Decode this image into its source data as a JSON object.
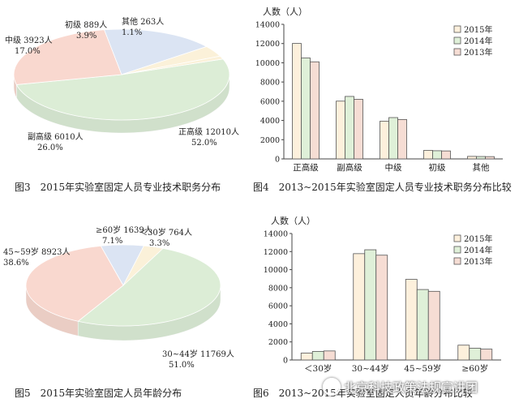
{
  "captions": {
    "fig3": "图3　2015年实验室固定人员专业技术职务分布",
    "fig4": "图4　2013~2015年实验室固定人员专业技术职务分布比较",
    "fig5": "图5　2015年实验室固定人员年龄分布",
    "fig6": "图6　2013~2015年实验室固定人员年龄分布比较"
  },
  "watermark": "北京科技政策法规宣讲团",
  "colors": {
    "series_2015": "#fdf0dc",
    "series_2014": "#dff0d8",
    "series_2013": "#f6ddd4",
    "pie_large": "#dcedd6",
    "pie_second": "#f9d8cf",
    "pie_third": "#dbe4f3",
    "pie_small1": "#fbf1d9",
    "pie_small2": "#fbf1d9"
  },
  "chart_data": [
    {
      "id": "fig3",
      "type": "pie",
      "slices": [
        {
          "label": "正高级",
          "count": "12010人",
          "percent": "52.0%",
          "value": 52.0
        },
        {
          "label": "副高级",
          "count": "6010人",
          "percent": "26.0%",
          "value": 26.0
        },
        {
          "label": "中级",
          "count": "3923人",
          "percent": "17.0%",
          "value": 17.0
        },
        {
          "label": "初级",
          "count": "889人",
          "percent": "3.9%",
          "value": 3.9
        },
        {
          "label": "其他",
          "count": "263人",
          "percent": "1.1%",
          "value": 1.1
        }
      ]
    },
    {
      "id": "fig4",
      "type": "bar",
      "ylabel": "人数（人）",
      "ylim": [
        0,
        14000
      ],
      "yticks": [
        "0",
        "2000",
        "4000",
        "6000",
        "8000",
        "10000",
        "12000",
        "14000"
      ],
      "categories": [
        "正高级",
        "副高级",
        "中级",
        "初级",
        "其他"
      ],
      "legend_position": "top-right",
      "series": [
        {
          "name": "2015年",
          "values": [
            12010,
            6010,
            3923,
            889,
            263
          ]
        },
        {
          "name": "2014年",
          "values": [
            10500,
            6500,
            4300,
            850,
            250
          ]
        },
        {
          "name": "2013年",
          "values": [
            10100,
            6200,
            4100,
            830,
            240
          ]
        }
      ]
    },
    {
      "id": "fig5",
      "type": "pie",
      "slices": [
        {
          "label": "30~44岁",
          "count": "11769人",
          "percent": "51.0%",
          "value": 51.0
        },
        {
          "label": "45~59岁",
          "count": "8923人",
          "percent": "38.6%",
          "value": 38.6
        },
        {
          "label": "≥60岁",
          "count": "1639人",
          "percent": "7.1%",
          "value": 7.1
        },
        {
          "label": "＜30岁",
          "count": "764人",
          "percent": "3.3%",
          "value": 3.3
        }
      ]
    },
    {
      "id": "fig6",
      "type": "bar",
      "ylabel": "人数（人）",
      "ylim": [
        0,
        14000
      ],
      "yticks": [
        "0",
        "2000",
        "4000",
        "6000",
        "8000",
        "10000",
        "12000",
        "14000"
      ],
      "categories": [
        "＜30岁",
        "30~44岁",
        "45~59岁",
        "≥60岁"
      ],
      "legend_position": "top-right",
      "series": [
        {
          "name": "2015年",
          "values": [
            764,
            11769,
            8923,
            1639
          ]
        },
        {
          "name": "2014年",
          "values": [
            950,
            12200,
            7800,
            1300
          ]
        },
        {
          "name": "2013年",
          "values": [
            1000,
            11600,
            7600,
            1200
          ]
        }
      ]
    }
  ]
}
